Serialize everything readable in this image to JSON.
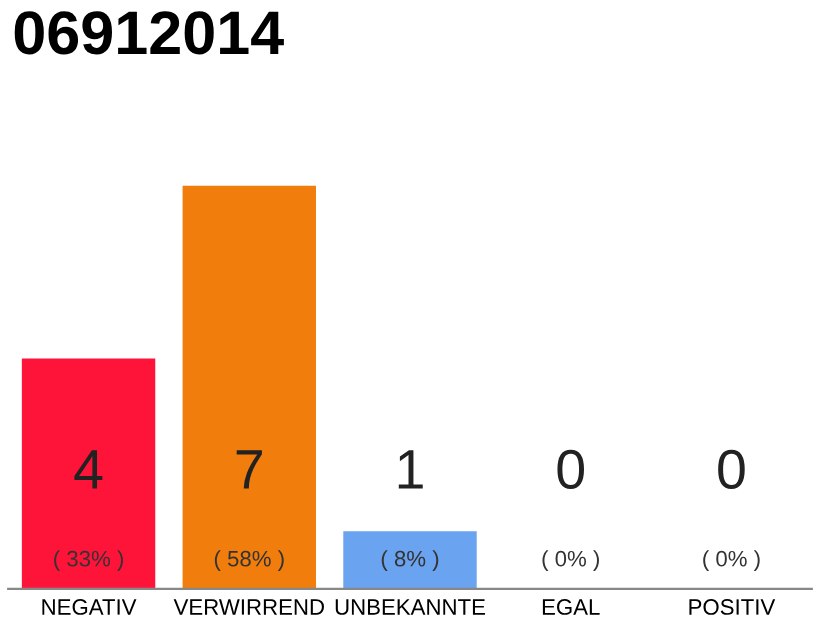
{
  "chart_data": {
    "type": "bar",
    "title": "06912014",
    "categories": [
      "NEGATIV",
      "VERWIRREND",
      "UNBEKANNTE",
      "EGAL",
      "POSITIV"
    ],
    "values": [
      4,
      7,
      1,
      0,
      0
    ],
    "colors": [
      "#ff1439",
      "#f07d0c",
      "#6aa3ef",
      "#cccccc",
      "#cccccc"
    ],
    "data_labels": true,
    "annotations": [
      "( 33% )",
      "( 58% )",
      "( 8% )",
      "( 0% )",
      "( 0% )"
    ],
    "grid": false,
    "legend": false
  }
}
